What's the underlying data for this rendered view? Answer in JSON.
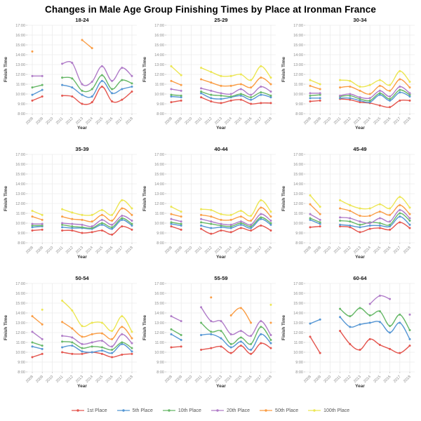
{
  "title": "Changes in Male Age Group Finishing Times by Place at Ironman France",
  "chart_data": {
    "type": "line",
    "layout": "3x3-small-multiples",
    "xlabel": "Year",
    "ylabel": "Finish Time",
    "x": [
      2008,
      2009,
      2010,
      2011,
      2012,
      2013,
      2014,
      2015,
      2016,
      2017,
      2018
    ],
    "yticks": [
      "8:00",
      "9:00",
      "10:00",
      "11:00",
      "12:00",
      "13:00",
      "14:00",
      "15:00",
      "16:00",
      "17:00"
    ],
    "ylim": [
      "8:00",
      "17:00"
    ],
    "grid": true,
    "legend_position": "bottom",
    "series_defs": [
      {
        "name": "1st Place",
        "color": "#e4564f"
      },
      {
        "name": "5th Place",
        "color": "#5596d4"
      },
      {
        "name": "10th Place",
        "color": "#67b868"
      },
      {
        "name": "20th Place",
        "color": "#b07cc8"
      },
      {
        "name": "50th Place",
        "color": "#fa9d45"
      },
      {
        "name": "100th Place",
        "color": "#ece654"
      }
    ],
    "subplots": [
      {
        "title": "18-24",
        "data": {
          "1st Place": [
            "9:20",
            "9:45",
            null,
            "9:50",
            "9:45",
            "9:00",
            "9:10",
            "10:45",
            "9:15",
            "9:25",
            "10:15"
          ],
          "5th Place": [
            "9:55",
            "10:25",
            null,
            "10:55",
            "10:40",
            "9:55",
            "9:45",
            "11:20",
            "10:05",
            "10:30",
            "10:45"
          ],
          "10th Place": [
            "10:40",
            "10:55",
            null,
            "11:40",
            "11:35",
            "10:20",
            "10:30",
            "11:55",
            "10:30",
            "11:25",
            "11:05"
          ],
          "20th Place": [
            "11:50",
            "11:50",
            null,
            "13:05",
            "13:10",
            "11:00",
            "11:15",
            "12:50",
            "11:20",
            "12:40",
            "11:50"
          ],
          "50th Place": [
            "14:20",
            null,
            null,
            null,
            null,
            "15:30",
            "14:40",
            null,
            null,
            null,
            null
          ],
          "100th Place": [
            null,
            null,
            null,
            null,
            null,
            null,
            null,
            null,
            null,
            null,
            null
          ]
        }
      },
      {
        "title": "25-29",
        "data": {
          "1st Place": [
            "9:10",
            "9:20",
            null,
            "9:40",
            "9:15",
            "9:05",
            "9:20",
            "9:25",
            "9:00",
            "9:05",
            "9:05"
          ],
          "5th Place": [
            "9:45",
            "9:40",
            null,
            "10:05",
            "9:35",
            "9:30",
            "9:40",
            "9:50",
            "9:25",
            "9:55",
            "9:40"
          ],
          "10th Place": [
            "9:55",
            "9:50",
            null,
            "10:15",
            "9:55",
            "9:50",
            "9:45",
            "10:00",
            "9:40",
            "10:10",
            "9:50"
          ],
          "20th Place": [
            "10:30",
            "10:20",
            null,
            "10:35",
            "10:20",
            "10:05",
            "10:00",
            "10:30",
            "9:55",
            "10:45",
            "10:15"
          ],
          "50th Place": [
            "11:20",
            "10:55",
            null,
            "11:30",
            "11:10",
            "10:50",
            "10:50",
            "11:00",
            "10:40",
            "11:40",
            "11:00"
          ],
          "100th Place": [
            "12:50",
            "11:55",
            null,
            "12:40",
            "12:15",
            "11:50",
            "11:50",
            "12:00",
            "11:25",
            "12:50",
            "11:40"
          ]
        }
      },
      {
        "title": "30-34",
        "data": {
          "1st Place": [
            "9:15",
            "9:20",
            null,
            "9:30",
            "9:25",
            "9:10",
            "9:05",
            "8:50",
            "8:40",
            "9:20",
            "9:20"
          ],
          "5th Place": [
            "9:35",
            "9:35",
            null,
            "9:35",
            "9:35",
            "9:20",
            "9:10",
            "9:55",
            "9:20",
            "10:10",
            "9:45"
          ],
          "10th Place": [
            "9:50",
            "9:55",
            null,
            "9:45",
            "9:50",
            "9:30",
            "9:20",
            "10:05",
            "9:30",
            "10:25",
            "9:55"
          ],
          "20th Place": [
            "10:05",
            "10:05",
            null,
            "9:50",
            "10:00",
            "9:40",
            "9:35",
            "10:20",
            "9:45",
            "10:45",
            "10:05"
          ],
          "50th Place": [
            "10:50",
            "10:30",
            null,
            "10:40",
            "10:45",
            "10:20",
            "10:00",
            "10:50",
            "10:20",
            "11:30",
            "10:40"
          ],
          "100th Place": [
            "11:25",
            "11:00",
            null,
            "11:25",
            "11:20",
            "10:45",
            "10:55",
            "11:25",
            "10:55",
            "12:20",
            "11:15"
          ]
        }
      },
      {
        "title": "35-39",
        "data": {
          "1st Place": [
            "9:15",
            "9:20",
            null,
            "9:15",
            "9:15",
            "9:00",
            "9:05",
            "9:15",
            "8:50",
            "9:40",
            "9:20"
          ],
          "5th Place": [
            "9:35",
            "9:40",
            null,
            "9:35",
            "9:30",
            "9:30",
            "9:25",
            "9:50",
            "9:25",
            "10:20",
            "9:45"
          ],
          "10th Place": [
            "9:45",
            "9:45",
            null,
            "9:50",
            "9:40",
            "9:35",
            "9:30",
            "10:00",
            "9:35",
            "10:30",
            "9:55"
          ],
          "20th Place": [
            "9:55",
            "9:55",
            null,
            "10:00",
            "9:55",
            "9:50",
            "9:40",
            "10:20",
            "9:50",
            "10:45",
            "10:15"
          ],
          "50th Place": [
            "10:40",
            "10:20",
            null,
            "10:40",
            "10:25",
            "10:20",
            "10:10",
            "10:50",
            "10:15",
            "11:30",
            "10:50"
          ],
          "100th Place": [
            "11:15",
            "10:50",
            null,
            "11:25",
            "11:05",
            "10:50",
            "10:50",
            "11:20",
            "10:50",
            "12:20",
            "11:30"
          ]
        }
      },
      {
        "title": "40-44",
        "data": {
          "1st Place": [
            "9:40",
            "9:20",
            null,
            "9:25",
            "8:55",
            "9:15",
            "9:05",
            "9:30",
            "9:15",
            "9:45",
            "9:15"
          ],
          "5th Place": [
            "9:55",
            "9:45",
            null,
            "9:45",
            "9:30",
            "9:35",
            "9:30",
            "9:50",
            "9:30",
            "10:25",
            "9:50"
          ],
          "10th Place": [
            "10:05",
            "9:55",
            null,
            "10:05",
            "9:55",
            "9:45",
            "9:40",
            "10:00",
            "9:40",
            "10:35",
            "10:00"
          ],
          "20th Place": [
            "10:25",
            "10:10",
            null,
            "10:25",
            "10:10",
            "9:55",
            "9:50",
            "10:10",
            "9:50",
            "10:55",
            "10:15"
          ],
          "50th Place": [
            "10:55",
            "10:40",
            null,
            "10:50",
            "10:40",
            "10:20",
            "10:20",
            "10:40",
            "10:15",
            "11:35",
            "10:40"
          ],
          "100th Place": [
            "11:40",
            "11:10",
            null,
            "11:25",
            "11:20",
            "10:55",
            "10:50",
            "11:15",
            "10:45",
            "12:20",
            "11:10"
          ]
        }
      },
      {
        "title": "45-49",
        "data": {
          "1st Place": [
            "9:35",
            "9:40",
            null,
            "9:40",
            "9:35",
            "9:05",
            "9:25",
            "9:30",
            "9:20",
            "10:05",
            "9:30"
          ],
          "5th Place": [
            "10:20",
            "9:55",
            null,
            "9:50",
            "9:45",
            "9:35",
            "9:45",
            "9:45",
            "9:40",
            "10:40",
            "9:50"
          ],
          "10th Place": [
            "10:30",
            "10:05",
            null,
            "10:15",
            "10:10",
            "9:50",
            "10:05",
            "10:00",
            "9:50",
            "11:00",
            "10:15"
          ],
          "20th Place": [
            "10:55",
            "10:20",
            null,
            "10:35",
            "10:30",
            "10:10",
            "10:00",
            "10:30",
            "10:10",
            "11:20",
            "10:30"
          ],
          "50th Place": [
            "11:55",
            "10:55",
            null,
            "11:30",
            "11:15",
            "10:45",
            "10:45",
            "11:10",
            "10:50",
            "11:50",
            "10:55"
          ],
          "100th Place": [
            "12:50",
            "11:40",
            null,
            "12:20",
            "11:50",
            "11:30",
            "11:30",
            "11:55",
            "11:30",
            "12:40",
            "11:35"
          ]
        }
      },
      {
        "title": "50-54",
        "data": {
          "1st Place": [
            "9:30",
            "9:50",
            null,
            "10:00",
            "9:50",
            "9:50",
            "10:00",
            "9:50",
            "9:30",
            "9:45",
            "9:50"
          ],
          "5th Place": [
            "10:35",
            "10:20",
            null,
            "10:30",
            "10:40",
            "10:05",
            "10:00",
            "10:10",
            "9:55",
            "10:50",
            "10:05"
          ],
          "10th Place": [
            "11:00",
            "10:40",
            null,
            "11:05",
            "11:00",
            "10:25",
            "10:35",
            "10:30",
            "10:15",
            "11:00",
            "10:25"
          ],
          "20th Place": [
            "12:05",
            "11:20",
            null,
            "11:40",
            "11:30",
            "10:50",
            "11:00",
            "11:10",
            "10:35",
            "11:50",
            "10:55"
          ],
          "50th Place": [
            "13:40",
            "12:50",
            null,
            "13:05",
            "12:25",
            "11:35",
            "11:50",
            "11:55",
            "11:20",
            "12:35",
            "11:25"
          ],
          "100th Place": [
            null,
            "14:20",
            null,
            "15:15",
            "14:15",
            "12:40",
            "13:00",
            "13:00",
            "12:10",
            "13:40",
            "12:05"
          ]
        }
      },
      {
        "title": "55-59",
        "data": {
          "1st Place": [
            "10:30",
            "10:35",
            null,
            "10:15",
            "10:25",
            "10:35",
            "9:55",
            "10:40",
            "9:50",
            "10:55",
            "10:25"
          ],
          "5th Place": [
            "11:50",
            "11:15",
            null,
            "11:45",
            "11:50",
            "11:25",
            "10:30",
            "11:05",
            "10:15",
            "11:50",
            "10:55"
          ],
          "10th Place": [
            "12:20",
            "11:45",
            null,
            "13:00",
            "12:05",
            "12:10",
            "10:50",
            "11:30",
            "10:50",
            "12:35",
            "11:15"
          ],
          "20th Place": [
            "13:40",
            "13:10",
            null,
            "14:35",
            "13:10",
            "13:10",
            "11:50",
            "12:10",
            "11:40",
            "13:10",
            "11:45"
          ],
          "50th Place": [
            null,
            null,
            null,
            null,
            "15:35",
            null,
            "13:45",
            "14:30",
            "13:00",
            null,
            "13:00"
          ],
          "100th Place": [
            null,
            null,
            null,
            null,
            null,
            null,
            null,
            null,
            null,
            null,
            "14:50"
          ]
        }
      },
      {
        "title": "60-64",
        "data": {
          "1st Place": [
            "11:35",
            "9:55",
            null,
            "12:10",
            "10:50",
            "10:15",
            "11:20",
            "10:45",
            "10:20",
            "9:55",
            "10:40"
          ],
          "5th Place": [
            "12:55",
            "13:20",
            null,
            "13:35",
            "12:35",
            "12:50",
            "13:00",
            "13:05",
            "12:00",
            "13:00",
            "11:20"
          ],
          "10th Place": [
            null,
            null,
            null,
            "14:25",
            "13:40",
            "14:30",
            "13:45",
            "14:10",
            "12:40",
            "13:50",
            "12:15"
          ],
          "20th Place": [
            null,
            null,
            null,
            null,
            null,
            null,
            "14:55",
            "15:45",
            "15:25",
            null,
            "13:50"
          ],
          "50th Place": [
            null,
            null,
            null,
            null,
            null,
            null,
            null,
            null,
            null,
            null,
            null
          ],
          "100th Place": [
            null,
            null,
            null,
            null,
            null,
            null,
            null,
            null,
            null,
            null,
            null
          ]
        }
      }
    ]
  }
}
